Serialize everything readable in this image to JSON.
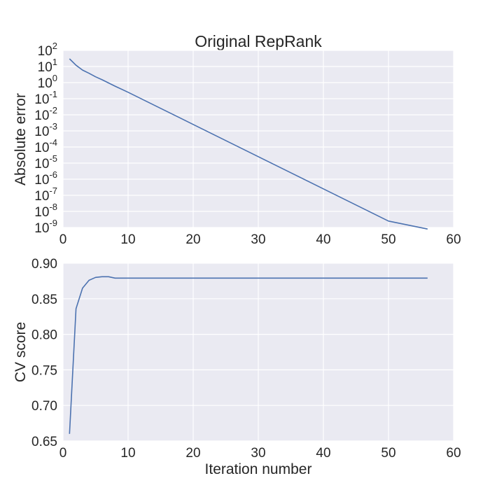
{
  "chart_data": [
    {
      "type": "line",
      "title": "Original RepRank",
      "xlabel": "",
      "ylabel": "Absolute error",
      "yscale": "log",
      "xlim": [
        0,
        60
      ],
      "ylim": [
        1e-09,
        100
      ],
      "grid": true,
      "x_ticks": [
        "0",
        "10",
        "20",
        "30",
        "40",
        "50",
        "60"
      ],
      "y_tick_base": "10",
      "y_tick_exponents": [
        "2",
        "1",
        "0",
        "-1",
        "-2",
        "-3",
        "-4",
        "-5",
        "-6",
        "-7",
        "-8",
        "-9"
      ],
      "series": [
        {
          "color": "#4c72b0",
          "x": [
            1,
            2,
            3,
            4,
            5,
            6,
            7,
            8,
            10,
            15,
            20,
            25,
            30,
            35,
            40,
            45,
            50,
            56
          ],
          "y": [
            30,
            12,
            6,
            3.8,
            2.3,
            1.5,
            0.95,
            0.6,
            0.25,
            0.025,
            0.0025,
            0.00025,
            2.5e-05,
            2.5e-06,
            2.5e-07,
            2.5e-08,
            2.5e-09,
            8e-10
          ]
        }
      ]
    },
    {
      "type": "line",
      "title": "",
      "xlabel": "Iteration number",
      "ylabel": "CV score",
      "xlim": [
        0,
        60
      ],
      "ylim": [
        0.65,
        0.9
      ],
      "grid": true,
      "x_ticks": [
        "0",
        "10",
        "20",
        "30",
        "40",
        "50",
        "60"
      ],
      "y_ticks": [
        "0.65",
        "0.70",
        "0.75",
        "0.80",
        "0.85",
        "0.90"
      ],
      "series": [
        {
          "color": "#4c72b0",
          "x": [
            1,
            2,
            3,
            4,
            5,
            6,
            7,
            8,
            10,
            20,
            30,
            40,
            50,
            56
          ],
          "y": [
            0.66,
            0.836,
            0.865,
            0.876,
            0.88,
            0.881,
            0.881,
            0.879,
            0.879,
            0.879,
            0.879,
            0.879,
            0.879,
            0.879
          ]
        }
      ]
    }
  ]
}
